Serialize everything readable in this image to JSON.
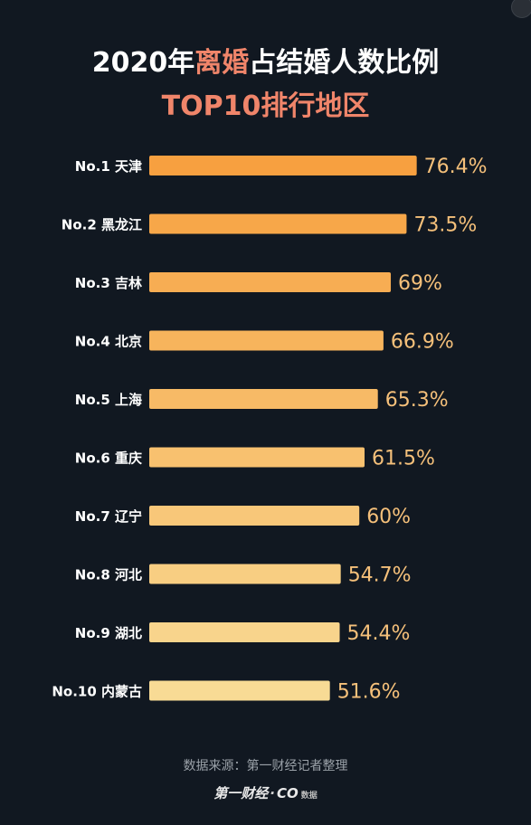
{
  "title": {
    "part1": "2020年",
    "highlight": "离婚",
    "part2": "占结婚人数比例"
  },
  "subtitle": "TOP10排行地区",
  "source": "数据来源：第一财经记者整理",
  "logo": {
    "brand": "第一财经",
    "separator": "·",
    "sub": "CO",
    "tag": "数据"
  },
  "colors": {
    "background": "#111821",
    "title_highlight": "#f0856a",
    "value_text": "#f5c07a",
    "bar_top": "#f7a040",
    "bar_bottom": "#f8db95"
  },
  "chart_data": {
    "type": "bar",
    "orientation": "horizontal",
    "categories": [
      "No.1 天津",
      "No.2 黑龙江",
      "No.3 吉林",
      "No.4 北京",
      "No.5 上海",
      "No.6 重庆",
      "No.7 辽宁",
      "No.8 河北",
      "No.9 湖北",
      "No.10 内蒙古"
    ],
    "values": [
      76.4,
      73.5,
      69,
      66.9,
      65.3,
      61.5,
      60,
      54.7,
      54.4,
      51.6
    ],
    "value_labels": [
      "76.4%",
      "73.5%",
      "69%",
      "66.9%",
      "65.3%",
      "61.5%",
      "60%",
      "54.7%",
      "54.4%",
      "51.6%"
    ],
    "unit": "%",
    "grid": false,
    "legend": "none"
  }
}
